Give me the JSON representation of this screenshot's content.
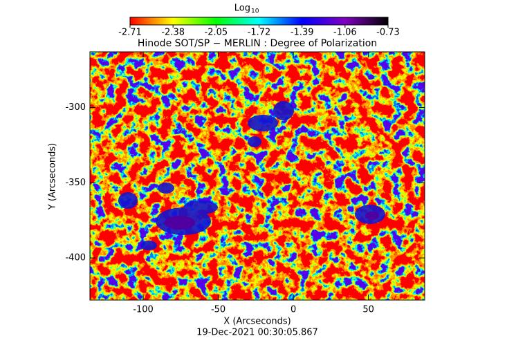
{
  "chart_data": {
    "type": "image",
    "title": "Hinode SOT/SP − MERLIN : Degree of Polarization",
    "x_label": "X (Arcseconds)",
    "y_label": "Y (Arcseconds)",
    "footer": "19-Dec-2021 00:30:05.867",
    "xlim": [
      -135.5,
      87.5
    ],
    "xticks": [
      -100,
      -50,
      0,
      50
    ],
    "ylim": [
      -428,
      -263
    ],
    "yticks": [
      -400,
      -350,
      -300
    ],
    "colorbar": {
      "label": "Log",
      "label_subscript": "10",
      "zlim": [
        -2.71,
        -0.73
      ],
      "zticks": [
        -2.71,
        -2.38,
        -2.05,
        -1.72,
        -1.39,
        -1.06,
        -0.73
      ],
      "colors": [
        "#ff0000",
        "#ffff00",
        "#00ff00",
        "#00ffff",
        "#0000ff",
        "#8000c0",
        "#000000"
      ]
    }
  }
}
